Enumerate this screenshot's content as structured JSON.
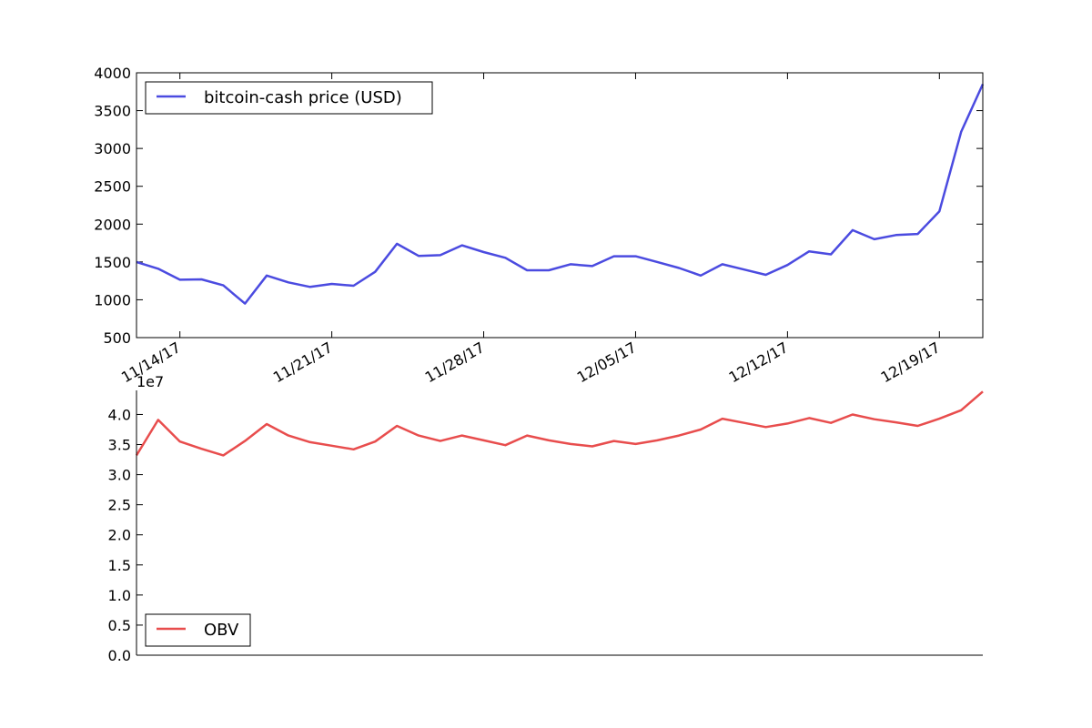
{
  "chart_data": [
    {
      "type": "line",
      "ylim": [
        500,
        4000
      ],
      "yticks": [
        500,
        1000,
        1500,
        2000,
        2500,
        3000,
        3500,
        4000
      ],
      "xticks": [
        "11/14/17",
        "11/21/17",
        "11/28/17",
        "12/05/17",
        "12/12/17",
        "12/19/17"
      ],
      "x_dates": [
        "2017-11-12",
        "2017-11-13",
        "2017-11-14",
        "2017-11-15",
        "2017-11-16",
        "2017-11-17",
        "2017-11-18",
        "2017-11-19",
        "2017-11-20",
        "2017-11-21",
        "2017-11-22",
        "2017-11-23",
        "2017-11-24",
        "2017-11-25",
        "2017-11-26",
        "2017-11-27",
        "2017-11-28",
        "2017-11-29",
        "2017-11-30",
        "2017-12-01",
        "2017-12-02",
        "2017-12-03",
        "2017-12-04",
        "2017-12-05",
        "2017-12-06",
        "2017-12-07",
        "2017-12-08",
        "2017-12-09",
        "2017-12-10",
        "2017-12-11",
        "2017-12-12",
        "2017-12-13",
        "2017-12-14",
        "2017-12-15",
        "2017-12-16",
        "2017-12-17",
        "2017-12-18",
        "2017-12-19",
        "2017-12-20",
        "2017-12-21"
      ],
      "legend_position": "top-left",
      "grid": false,
      "series": [
        {
          "name": "bitcoin-cash price (USD)",
          "color": "#4b4be0",
          "values": [
            1500,
            1410,
            1265,
            1270,
            1190,
            950,
            1320,
            1230,
            1170,
            1210,
            1185,
            1370,
            1740,
            1580,
            1590,
            1720,
            1630,
            1555,
            1390,
            1390,
            1470,
            1445,
            1575,
            1575,
            1500,
            1420,
            1320,
            1470,
            1400,
            1330,
            1460,
            1640,
            1600,
            1920,
            1800,
            1855,
            1870,
            2170,
            3220,
            3850
          ]
        }
      ]
    },
    {
      "type": "line",
      "ylim": [
        0.0,
        4.4
      ],
      "yticks": [
        "0.0",
        "0.5",
        "1.0",
        "1.5",
        "2.0",
        "2.5",
        "3.0",
        "3.5",
        "4.0"
      ],
      "scale_label": "1e7",
      "legend_position": "bottom-left",
      "grid": false,
      "series": [
        {
          "name": "OBV",
          "color": "#e84d4d",
          "values": [
            3.32,
            3.91,
            3.55,
            3.43,
            3.32,
            3.56,
            3.84,
            3.65,
            3.54,
            3.48,
            3.42,
            3.55,
            3.81,
            3.65,
            3.56,
            3.65,
            3.57,
            3.49,
            3.65,
            3.57,
            3.51,
            3.47,
            3.56,
            3.51,
            3.57,
            3.65,
            3.75,
            3.93,
            3.86,
            3.79,
            3.85,
            3.94,
            3.86,
            4.0,
            3.92,
            3.87,
            3.81,
            3.93,
            4.07,
            4.38
          ]
        }
      ]
    }
  ]
}
